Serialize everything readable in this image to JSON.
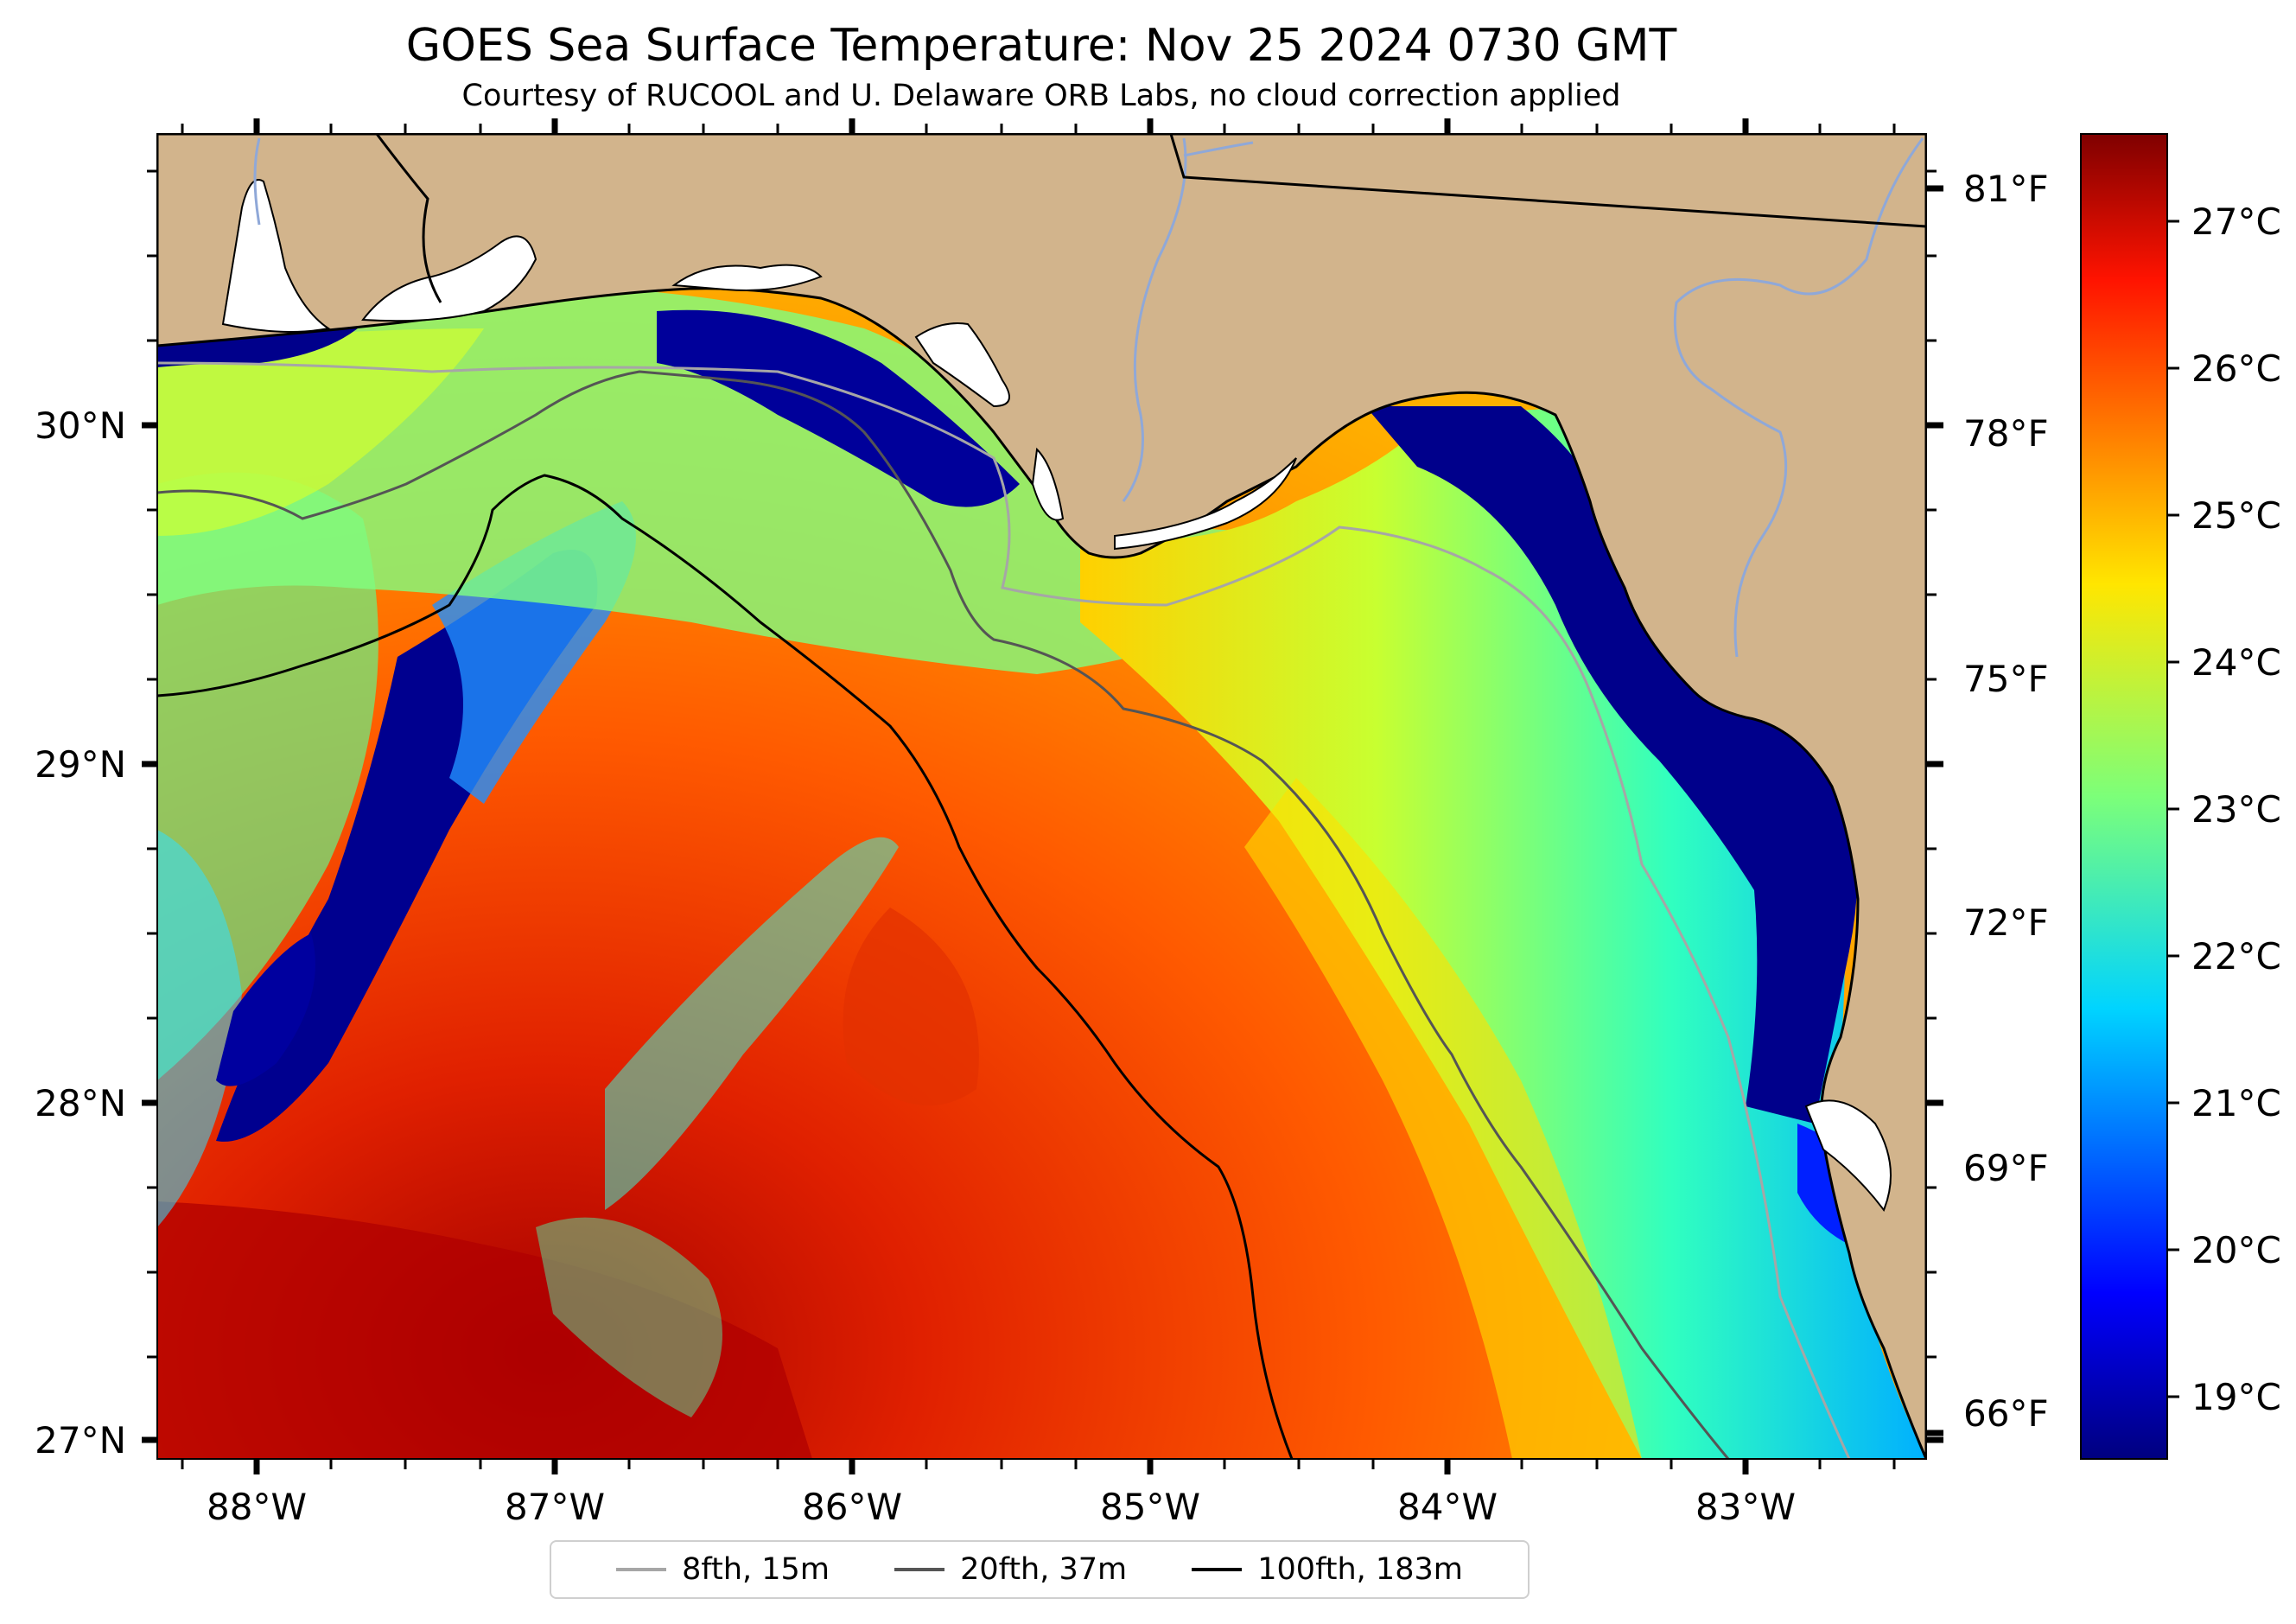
{
  "title": "GOES Sea Surface Temperature: Nov 25 2024 0730 GMT",
  "subtitle": "Courtesy of RUCOOL and U. Delaware ORB Labs, no cloud correction applied",
  "map": {
    "land_color": "#d2b48c",
    "coast_color": "#000000",
    "river_color": "#8fa8d8",
    "lon_ticks": [
      "88°W",
      "87°W",
      "86°W",
      "85°W",
      "84°W",
      "83°W"
    ],
    "lat_ticks": [
      "30°N",
      "29°N",
      "28°N",
      "27°N"
    ],
    "fahrenheit_ticks": [
      "81°F",
      "78°F",
      "75°F",
      "72°F",
      "69°F",
      "66°F"
    ]
  },
  "colorbar": {
    "colormap": "jet",
    "labels": [
      "27°C",
      "26°C",
      "25°C",
      "24°C",
      "23°C",
      "22°C",
      "21°C",
      "20°C",
      "19°C"
    ]
  },
  "legend": {
    "items": [
      {
        "label": "8fth, 15m",
        "color": "#a6a6a6"
      },
      {
        "label": "20fth, 37m",
        "color": "#555555"
      },
      {
        "label": "100fth, 183m",
        "color": "#000000"
      }
    ]
  }
}
